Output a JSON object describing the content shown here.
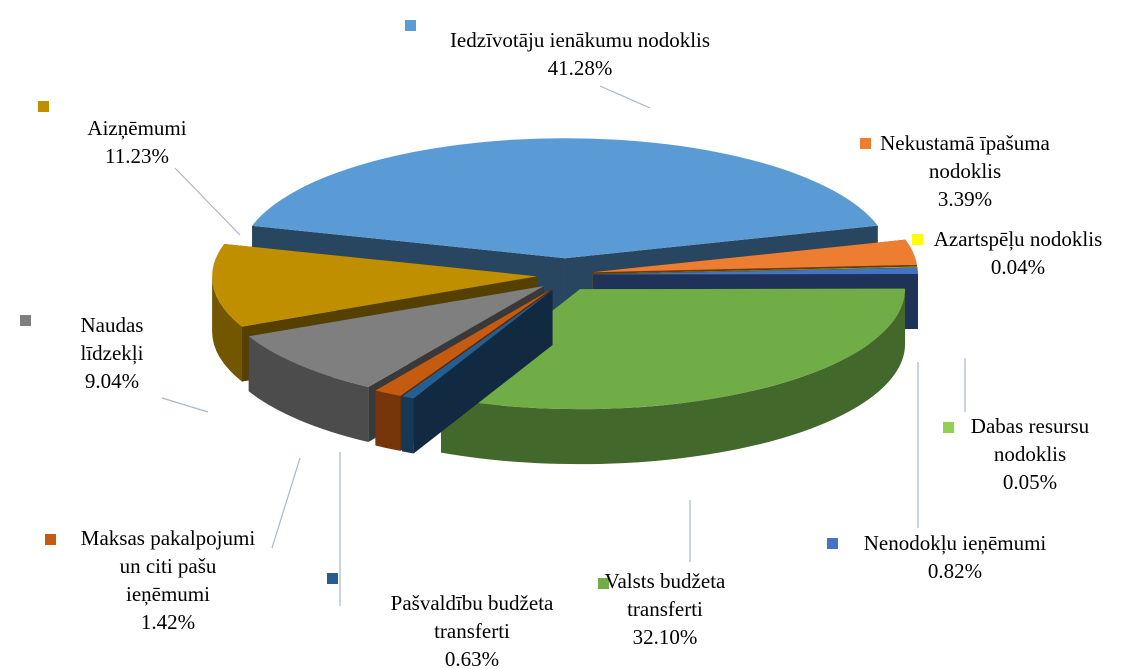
{
  "chart_data": {
    "type": "pie",
    "categories": [
      "Iedzīvotāju ienākumu nodoklis",
      "Nekustamā īpašuma nodoklis",
      "Azartspēļu nodoklis",
      "Dabas resursu nodoklis",
      "Nenodokļu ieņēmumi",
      "Valsts budžeta transferti",
      "Pašvaldību budžeta transferti",
      "Maksas pakalpojumi un citi pašu ieņēmumi",
      "Naudas līdzekļi",
      "Aizņēmumi"
    ],
    "values": [
      41.28,
      3.39,
      0.04,
      0.05,
      0.82,
      32.1,
      0.63,
      1.42,
      9.04,
      11.23
    ],
    "value_labels": [
      "41.28%",
      "3.39%",
      "0.04%",
      "0.05%",
      "0.82%",
      "32.10%",
      "0.63%",
      "1.42%",
      "9.04%",
      "11.23%"
    ],
    "colors": [
      "#5b9bd5",
      "#ed7d31",
      "#ffff00",
      "#92d050",
      "#4472c4",
      "#70ad47",
      "#255e91",
      "#c55a11",
      "#7f7f7f",
      "#bf8f00"
    ]
  }
}
